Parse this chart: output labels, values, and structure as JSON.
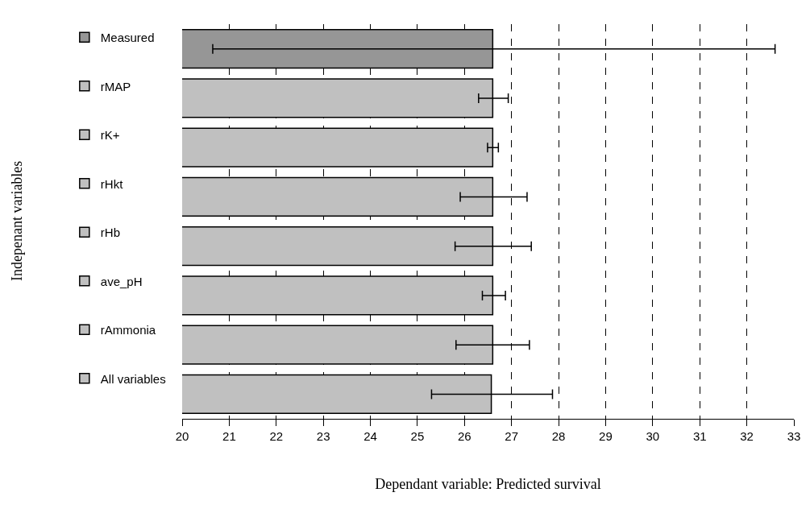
{
  "chart_data": {
    "type": "bar",
    "orientation": "horizontal",
    "xlabel": "Dependant variable: Predicted survival",
    "annotations": [
      "Indepenant variables"
    ],
    "categories": [
      null
    ],
    "series": [
      {
        "name": "Measured",
        "color": "#969696",
        "values": [
          26.6
        ],
        "errors": [
          [
            20.65,
            32.6
          ]
        ]
      },
      {
        "name": "rMAP",
        "color": "#c0c0c0",
        "values": [
          26.6
        ],
        "errors": [
          [
            26.3,
            26.93
          ]
        ]
      },
      {
        "name": "rK+",
        "color": "#c0c0c0",
        "values": [
          26.6
        ],
        "errors": [
          [
            26.49,
            26.72
          ]
        ]
      },
      {
        "name": "rHkt",
        "color": "#c0c0c0",
        "values": [
          26.6
        ],
        "errors": [
          [
            25.91,
            27.33
          ]
        ]
      },
      {
        "name": "rHb",
        "color": "#c0c0c0",
        "values": [
          26.6
        ],
        "errors": [
          [
            25.8,
            27.42
          ]
        ]
      },
      {
        "name": "ave_pH",
        "color": "#c0c0c0",
        "values": [
          26.6
        ],
        "errors": [
          [
            26.38,
            26.87
          ]
        ]
      },
      {
        "name": "rAmmonia",
        "color": "#c0c0c0",
        "values": [
          26.6
        ],
        "errors": [
          [
            25.82,
            27.38
          ]
        ]
      },
      {
        "name": "All variables",
        "color": "#c0c0c0",
        "values": [
          26.57
        ],
        "errors": [
          [
            25.3,
            27.87
          ]
        ]
      }
    ],
    "xlim": [
      20,
      33
    ],
    "xticks": [
      20,
      21,
      22,
      23,
      24,
      25,
      26,
      27,
      28,
      29,
      30,
      31,
      32,
      33
    ],
    "grid": "x",
    "legend": "left",
    "tick_labels": "x"
  }
}
